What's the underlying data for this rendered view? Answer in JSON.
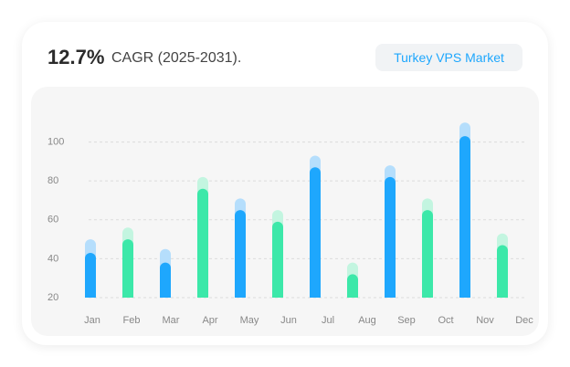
{
  "header": {
    "metric": "12.7%",
    "metric_label": "CAGR (2025-2031).",
    "badge": "Turkey VPS Market"
  },
  "chart_data": {
    "type": "bar",
    "categories": [
      "Jan",
      "Feb",
      "Mar",
      "Apr",
      "May",
      "Jun",
      "Jul",
      "Aug",
      "Sep",
      "Oct",
      "Nov",
      "Dec"
    ],
    "series": [
      {
        "values": [
          50,
          56,
          45,
          82,
          71,
          65,
          93,
          38,
          88,
          71,
          110,
          53
        ],
        "colors": [
          "#b5defc",
          "#c3f5e0",
          "#b5defc",
          "#c3f5e0",
          "#b5defc",
          "#c3f5e0",
          "#b5defc",
          "#c3f5e0",
          "#b5defc",
          "#c3f5e0",
          "#b5defc",
          "#c3f5e0"
        ]
      },
      {
        "values": [
          43,
          50,
          38,
          76,
          65,
          59,
          87,
          32,
          82,
          65,
          103,
          47
        ],
        "colors": [
          "#1ea7fd",
          "#3ce8a9",
          "#1ea7fd",
          "#3ce8a9",
          "#1ea7fd",
          "#3ce8a9",
          "#1ea7fd",
          "#3ce8a9",
          "#1ea7fd",
          "#3ce8a9",
          "#1ea7fd",
          "#3ce8a9"
        ]
      }
    ],
    "ylim": [
      20,
      112
    ],
    "yticks": [
      20,
      40,
      60,
      80,
      100
    ],
    "grid": true
  }
}
